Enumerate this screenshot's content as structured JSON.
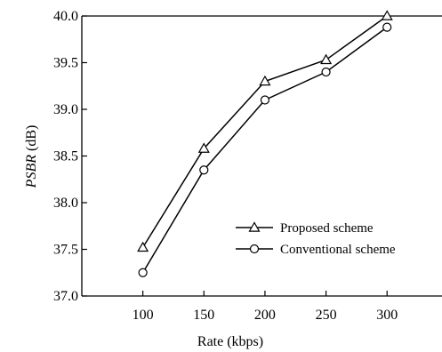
{
  "chart_data": {
    "type": "line",
    "title": "",
    "xlabel": "Rate (kbps)",
    "ylabel": {
      "italic": "PSBR",
      "rest": " (dB)"
    },
    "x": [
      100,
      150,
      200,
      250,
      300
    ],
    "xticks": [
      "100",
      "150",
      "200",
      "250",
      "300"
    ],
    "yticks": [
      "37.0",
      "37.5",
      "38.0",
      "38.5",
      "39.0",
      "39.5",
      "40.0"
    ],
    "xlim": [
      50,
      345
    ],
    "ylim": [
      37.0,
      40.0
    ],
    "grid": false,
    "legend_position": "lower-right",
    "series": [
      {
        "name": "Proposed scheme",
        "marker": "triangle",
        "values": [
          37.52,
          38.58,
          39.3,
          39.53,
          40.0
        ]
      },
      {
        "name": "Conventional scheme",
        "marker": "circle",
        "values": [
          37.25,
          38.35,
          39.1,
          39.4,
          39.88
        ]
      }
    ],
    "colors": {
      "line": "#000000",
      "marker_fill": "#ffffff",
      "background": "#ffffff"
    }
  }
}
